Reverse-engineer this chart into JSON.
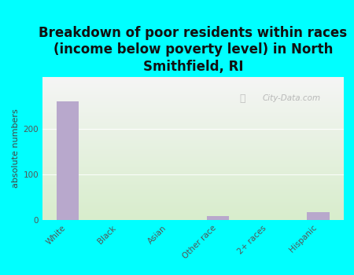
{
  "categories": [
    "White",
    "Black",
    "Asian",
    "Other race",
    "2+ races",
    "Hispanic"
  ],
  "values": [
    262,
    0,
    0,
    8,
    0,
    18
  ],
  "bar_color": "#b8a8cc",
  "title": "Breakdown of poor residents within races\n(income below poverty level) in North\nSmithfield, RI",
  "ylabel": "absolute numbers",
  "ylim": [
    0,
    315
  ],
  "yticks": [
    0,
    100,
    200
  ],
  "background_color": "#00ffff",
  "plot_bg_gradient_top": "#f5f5f5",
  "plot_bg_gradient_bottom": "#d8edcc",
  "watermark": "City-Data.com",
  "title_fontsize": 12,
  "ylabel_fontsize": 8,
  "tick_fontsize": 7.5
}
